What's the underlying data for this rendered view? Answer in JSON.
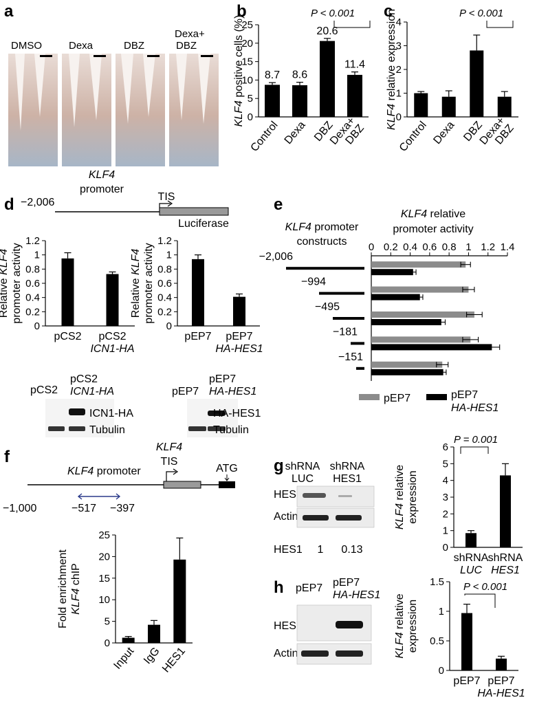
{
  "panels": {
    "a": {
      "letter": "a",
      "labels": [
        "DMSO",
        "Dexa",
        "DBZ",
        "Dexa+",
        "DBZ"
      ]
    },
    "b": {
      "letter": "b",
      "pvalue": "P < 0.001"
    },
    "c": {
      "letter": "c",
      "pvalue": "P < 0.001"
    },
    "d": {
      "letter": "d",
      "schematic": {
        "gene": "KLF4",
        "promoter_word": "promoter",
        "tis": "TIS",
        "position": "−2,006",
        "reporter": "Luciferase"
      },
      "blot_left": {
        "lanes": [
          "pCS2",
          "pCS2",
          "ICN1-HA"
        ],
        "bands": [
          "ICN1-HA",
          "Tubulin"
        ]
      },
      "blot_right": {
        "lanes": [
          "pEP7",
          "pEP7",
          "HA-HES1"
        ],
        "bands": [
          "HA-HES1",
          "Tubulin"
        ]
      }
    },
    "e": {
      "letter": "e",
      "constructs_title": [
        "KLF4",
        " promoter",
        "constructs"
      ],
      "constructs": [
        "−2,006",
        "−994",
        "−495",
        "−181",
        "−151"
      ],
      "legend": [
        "pEP7",
        "pEP7",
        "HA-HES1"
      ]
    },
    "f": {
      "letter": "f",
      "gene": "KLF4",
      "promoter_word": " promoter",
      "tis": "TIS",
      "atg": "ATG",
      "pos_left": "−1,000",
      "pos_a": "−517",
      "pos_b": "−397"
    },
    "g": {
      "letter": "g",
      "lanes": [
        "shRNA",
        "LUC",
        "shRNA",
        "HES1"
      ],
      "bands": [
        "HES1",
        "Actin"
      ],
      "quant_label": "HES1",
      "quant_values": [
        "1",
        "0.13"
      ],
      "pvalue": "P = 0.001"
    },
    "h": {
      "letter": "h",
      "lanes": [
        "pEP7",
        "pEP7",
        "HA-HES1"
      ],
      "bands": [
        "HES1",
        "Actin"
      ],
      "pvalue": "P < 0.001"
    }
  },
  "chart_data": [
    {
      "id": "b",
      "type": "bar",
      "categories": [
        "Control",
        "Dexa",
        "DBZ",
        "Dexa+ DBZ"
      ],
      "values": [
        8.7,
        8.6,
        20.6,
        11.4
      ],
      "errors": [
        0.6,
        0.8,
        0.7,
        0.8
      ],
      "data_labels": [
        "8.7",
        "8.6",
        "20.6",
        "11.4"
      ],
      "ylabel": "KLF4 positive cells (%)",
      "ylim": [
        0,
        25
      ],
      "yticks": [
        0,
        5,
        10,
        15,
        20,
        25
      ]
    },
    {
      "id": "c",
      "type": "bar",
      "categories": [
        "Control",
        "Dexa",
        "DBZ",
        "Dexa+ DBZ"
      ],
      "values": [
        1.0,
        0.85,
        2.8,
        0.85
      ],
      "errors": [
        0.07,
        0.25,
        0.65,
        0.22
      ],
      "ylabel": "KLF4 relative expression",
      "ylim": [
        0,
        4
      ],
      "yticks": [
        0,
        1,
        2,
        3,
        4
      ]
    },
    {
      "id": "d1",
      "type": "bar",
      "categories": [
        "pCS2",
        "pCS2 ICN1-HA"
      ],
      "values": [
        0.95,
        0.73
      ],
      "errors": [
        0.08,
        0.03
      ],
      "ylabel": "Relative KLF4 promoter activity",
      "ylim": [
        0,
        1.2
      ],
      "yticks": [
        0,
        0.2,
        0.4,
        0.6,
        0.8,
        1,
        1.2
      ]
    },
    {
      "id": "d2",
      "type": "bar",
      "categories": [
        "pEP7",
        "pEP7 HA-HES1"
      ],
      "values": [
        0.94,
        0.41
      ],
      "errors": [
        0.06,
        0.04
      ],
      "ylabel": "Relative KLF4 promoter activity",
      "ylim": [
        0,
        1.2
      ],
      "yticks": [
        0,
        0.2,
        0.4,
        0.6,
        0.8,
        1,
        1.2
      ]
    },
    {
      "id": "e",
      "type": "bar",
      "orientation": "horizontal",
      "categories": [
        "−2,006",
        "−994",
        "−495",
        "−181",
        "−151"
      ],
      "xlabel": "KLF4 relative promoter activity",
      "xlim": [
        0,
        1.4
      ],
      "xticks": [
        0,
        0.2,
        0.4,
        0.6,
        0.8,
        1.0,
        1.2,
        1.4
      ],
      "series": [
        {
          "name": "pEP7",
          "values": [
            0.97,
            1.0,
            1.06,
            1.02,
            0.73
          ],
          "errors": [
            0.05,
            0.06,
            0.08,
            0.08,
            0.06
          ],
          "color": "#8c8c8c"
        },
        {
          "name": "pEP7 HA-HES1",
          "values": [
            0.43,
            0.5,
            0.72,
            1.24,
            0.74
          ],
          "errors": [
            0.03,
            0.03,
            0.04,
            0.08,
            0.03
          ],
          "color": "#000000"
        }
      ]
    },
    {
      "id": "f",
      "type": "bar",
      "categories": [
        "Input",
        "IgG",
        "HES1"
      ],
      "values": [
        1.2,
        4.2,
        19.3
      ],
      "errors": [
        0.3,
        1.0,
        5.0
      ],
      "ylabel": "Fold enrichment KLF4 chIP",
      "ylim": [
        0,
        25
      ],
      "yticks": [
        0,
        5,
        10,
        15,
        20,
        25
      ]
    },
    {
      "id": "g",
      "type": "bar",
      "categories": [
        "shRNA LUC",
        "shRNA HES1"
      ],
      "values": [
        0.85,
        4.3
      ],
      "errors": [
        0.15,
        0.7
      ],
      "ylabel": "KLF4 relative expression",
      "ylim": [
        0,
        6
      ],
      "yticks": [
        0,
        1,
        2,
        3,
        4,
        5,
        6
      ]
    },
    {
      "id": "h",
      "type": "bar",
      "categories": [
        "pEP7",
        "pEP7 HA-HES1"
      ],
      "values": [
        0.97,
        0.2
      ],
      "errors": [
        0.15,
        0.04
      ],
      "ylabel": "KLF4 relative expression",
      "ylim": [
        0,
        1.5
      ],
      "yticks": [
        0,
        0.5,
        1,
        1.5
      ]
    }
  ]
}
